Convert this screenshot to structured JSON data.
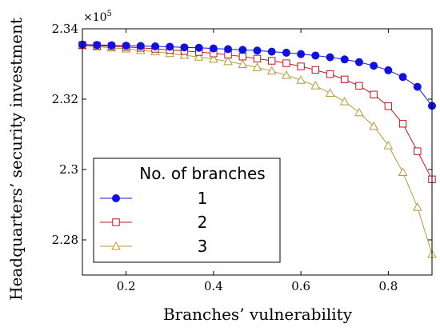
{
  "chart_data": {
    "type": "line",
    "xlabel": "Branches’ vulnerability",
    "ylabel": "Headquarters’ security investment",
    "multiplier_base": "×10",
    "multiplier_exp": "5",
    "xlim": [
      0.1,
      0.9
    ],
    "ylim": [
      2.27,
      2.34
    ],
    "xticks": [
      0.2,
      0.4,
      0.6,
      0.8
    ],
    "xtick_labels": [
      "0.2",
      "0.4",
      "0.6",
      "0.8"
    ],
    "yticks": [
      2.28,
      2.3,
      2.32,
      2.34
    ],
    "ytick_labels": [
      "2.28",
      "2.3",
      "2.32",
      "2.34"
    ],
    "grid": false,
    "legend": {
      "title": "No. of branches",
      "placement": "bottom-left"
    },
    "x": [
      0.1,
      0.1333,
      0.1667,
      0.2,
      0.2333,
      0.2667,
      0.3,
      0.3333,
      0.3667,
      0.4,
      0.4333,
      0.4667,
      0.5,
      0.5333,
      0.5667,
      0.6,
      0.6333,
      0.6667,
      0.7,
      0.7333,
      0.7667,
      0.8,
      0.8333,
      0.8667,
      0.9
    ],
    "series": [
      {
        "name": "1",
        "color": "#1010e0",
        "marker": "circle",
        "values": [
          2.3355,
          2.3354,
          2.3353,
          2.3352,
          2.3351,
          2.335,
          2.3349,
          2.3347,
          2.3346,
          2.3344,
          2.3342,
          2.334,
          2.3338,
          2.3335,
          2.3332,
          2.3328,
          2.3324,
          2.3319,
          2.3313,
          2.3305,
          2.3295,
          2.3282,
          2.3263,
          2.3235,
          2.3181
        ]
      },
      {
        "name": "2",
        "color": "#c0181c",
        "marker": "square",
        "values": [
          2.3354,
          2.3352,
          2.335,
          2.3348,
          2.3346,
          2.3343,
          2.334,
          2.3337,
          2.3334,
          2.333,
          2.3326,
          2.3321,
          2.3315,
          2.3309,
          2.3302,
          2.3293,
          2.3283,
          2.3271,
          2.3256,
          2.3238,
          2.3213,
          2.318,
          2.313,
          2.3052,
          2.2972
        ]
      },
      {
        "name": "3",
        "color": "#b89a3c",
        "marker": "triangle",
        "values": [
          2.3352,
          2.3349,
          2.3346,
          2.3343,
          2.3339,
          2.3335,
          2.333,
          2.3325,
          2.332,
          2.3314,
          2.3307,
          2.3299,
          2.329,
          2.328,
          2.3268,
          2.3254,
          2.3238,
          2.3217,
          2.3193,
          2.3162,
          2.3123,
          2.3068,
          2.2992,
          2.2893,
          2.2759
        ]
      }
    ]
  }
}
